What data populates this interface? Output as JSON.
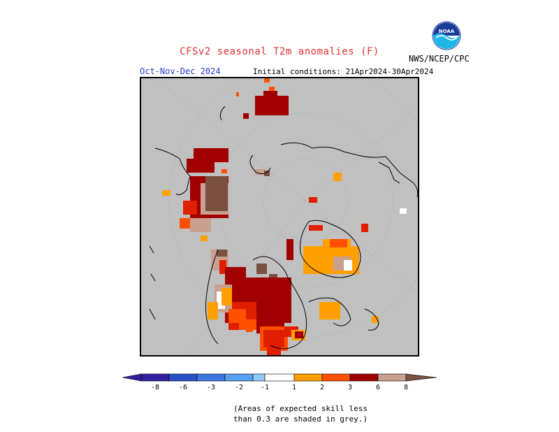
{
  "header": {
    "title": "CFSv2 seasonal T2m anomalies (F)",
    "season": "Oct-Nov-Dec 2024",
    "initial_conditions": "Initial conditions: 21Apr2024-30Apr2024",
    "agency": "NWS/NCEP/CPC",
    "logo_text": "NOAA"
  },
  "colors": {
    "ocean_grey": "#c0c0c0",
    "cold_minus8": "#3020a0",
    "cold_minus6": "#2a50c8",
    "cold_minus3": "#3a78e0",
    "cold_minus2": "#58a0f0",
    "cold_minus1": "#90c8f8",
    "neutral": "#ffffff",
    "warm_1": "#ffa000",
    "warm_2": "#ff5000",
    "warm_3": "#e01e00",
    "warm_6": "#a00000",
    "warm_8a": "#c8a090",
    "warm_8b": "#7a5040"
  },
  "colorbar": {
    "ticks": [
      "-8",
      "-6",
      "-3",
      "-2",
      "-1",
      "1",
      "2",
      "3",
      "6",
      "8"
    ]
  },
  "note": {
    "line1": "(Areas of expected skill less",
    "line2": "than 0.3 are shaded in grey.)"
  }
}
